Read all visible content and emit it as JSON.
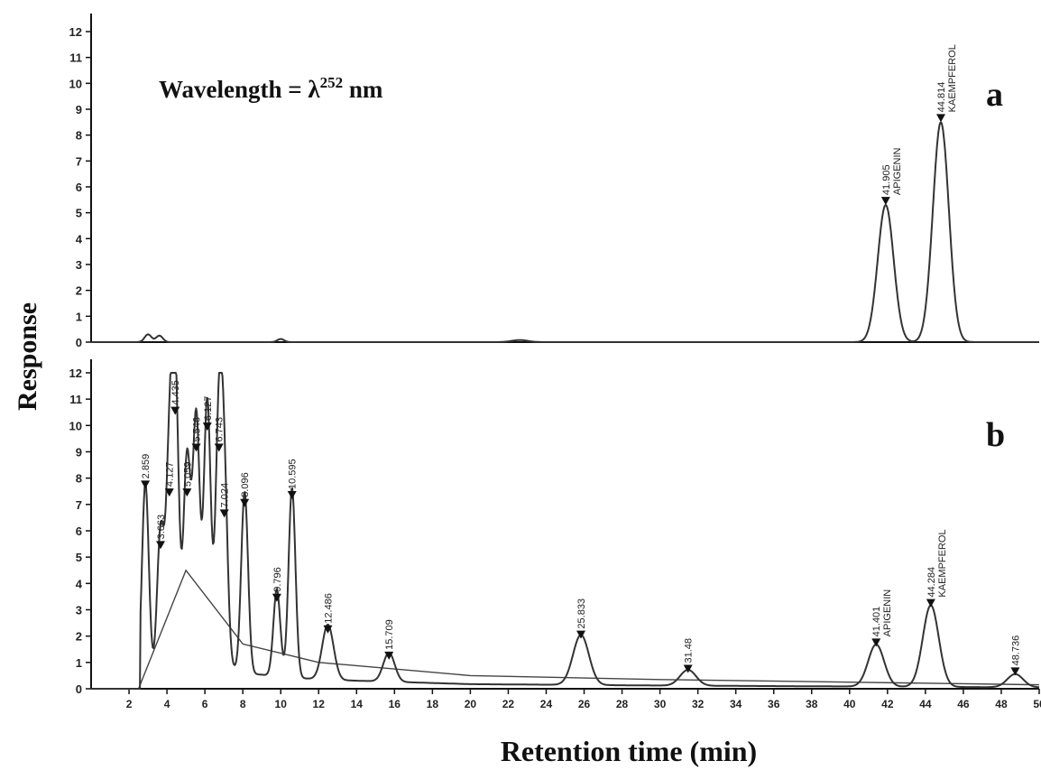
{
  "chart_data": {
    "type": "line",
    "ylabel": "Response",
    "xlabel": "Retention time (min)",
    "x_ticks": [
      "2",
      "4",
      "6",
      "8",
      "10",
      "12",
      "14",
      "16",
      "18",
      "20",
      "22",
      "24",
      "26",
      "28",
      "30",
      "32",
      "34",
      "36",
      "38",
      "40",
      "42",
      "44",
      "46",
      "48",
      "50"
    ],
    "y_ticks": [
      "0",
      "1",
      "2",
      "3",
      "4",
      "5",
      "6",
      "7",
      "8",
      "9",
      "10",
      "11",
      "12"
    ],
    "xlim": [
      0,
      50
    ],
    "panels": [
      {
        "id": "a",
        "letter": "a",
        "annotation_main": "Wavelength = λ",
        "annotation_sup": "252",
        "annotation_unit": " nm",
        "ylim": [
          0,
          12
        ],
        "peaks": [
          {
            "rt": 3.0,
            "height": 0.3,
            "label": ""
          },
          {
            "rt": 3.6,
            "height": 0.25,
            "label": ""
          },
          {
            "rt": 10.0,
            "height": 0.12,
            "label": ""
          },
          {
            "rt": 22.6,
            "height": 0.08,
            "label": ""
          },
          {
            "rt": 41.905,
            "height": 5.3,
            "label": "41.905"
          },
          {
            "rt": 44.814,
            "height": 8.5,
            "label": "44.814"
          }
        ],
        "compounds": [
          {
            "rt": 41.905,
            "name": "APIGENIN"
          },
          {
            "rt": 44.814,
            "name": "KAEMPFEROL"
          }
        ]
      },
      {
        "id": "b",
        "letter": "b",
        "ylim": [
          0,
          12
        ],
        "peaks": [
          {
            "rt": 2.859,
            "height": 7.6,
            "label": "2.859"
          },
          {
            "rt": 3.663,
            "height": 5.3,
            "label": "3.663"
          },
          {
            "rt": 4.127,
            "height": 7.3,
            "label": "4.127"
          },
          {
            "rt": 4.435,
            "height": 10.4,
            "label": "4.435"
          },
          {
            "rt": 5.059,
            "height": 7.3,
            "label": "5.059"
          },
          {
            "rt": 5.546,
            "height": 9.0,
            "label": "5.546"
          },
          {
            "rt": 6.127,
            "height": 9.8,
            "label": "6.127"
          },
          {
            "rt": 6.743,
            "height": 9.0,
            "label": "6.743"
          },
          {
            "rt": 7.024,
            "height": 6.5,
            "label": "7.024"
          },
          {
            "rt": 8.096,
            "height": 6.9,
            "label": "8.096"
          },
          {
            "rt": 9.796,
            "height": 3.3,
            "label": "9.796"
          },
          {
            "rt": 10.595,
            "height": 7.2,
            "label": "10.595"
          },
          {
            "rt": 12.486,
            "height": 2.1,
            "label": "12.486"
          },
          {
            "rt": 15.709,
            "height": 1.1,
            "label": "15.709"
          },
          {
            "rt": 25.833,
            "height": 1.9,
            "label": "25.833"
          },
          {
            "rt": 31.48,
            "height": 0.6,
            "label": "31.48"
          },
          {
            "rt": 41.401,
            "height": 1.6,
            "label": "41.401"
          },
          {
            "rt": 44.284,
            "height": 3.1,
            "label": "44.284"
          },
          {
            "rt": 48.736,
            "height": 0.5,
            "label": "48.736"
          }
        ],
        "compounds": [
          {
            "rt": 41.401,
            "name": "APIGENIN"
          },
          {
            "rt": 44.284,
            "name": "KAEMPFEROL"
          }
        ],
        "baseline_hump": [
          [
            2.5,
            0
          ],
          [
            5,
            4.5
          ],
          [
            8,
            1.7
          ],
          [
            12,
            1.0
          ],
          [
            20,
            0.5
          ],
          [
            30,
            0.35
          ],
          [
            40,
            0.25
          ],
          [
            50,
            0.15
          ]
        ]
      }
    ]
  }
}
